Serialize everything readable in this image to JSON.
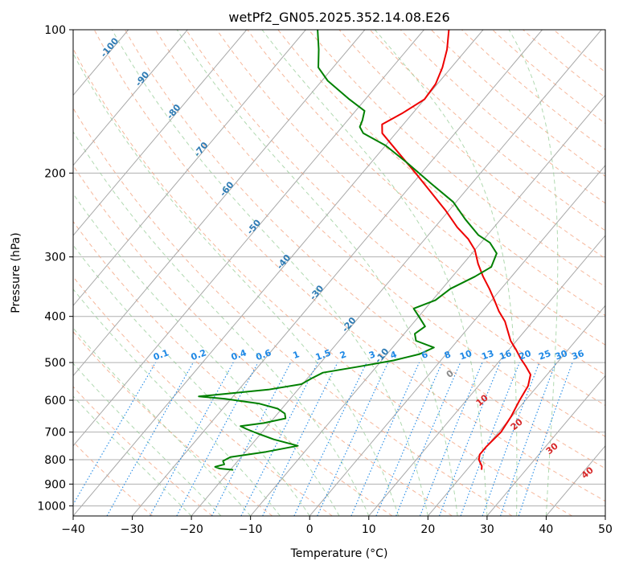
{
  "chart_data": {
    "type": "line",
    "subtype": "skew-t log-p diagram",
    "title": "wetPf2_GN05.2025.352.14.08.E26",
    "xlabel": "Temperature (°C)",
    "ylabel": "Pressure (hPa)",
    "xlim": [
      -40,
      50
    ],
    "ylim": [
      1050,
      100
    ],
    "y_scale": "log",
    "grid": true,
    "x_ticks": [
      -40,
      -30,
      -20,
      -10,
      0,
      10,
      20,
      30,
      40,
      50
    ],
    "x_tick_labels": [
      "−40",
      "−30",
      "−20",
      "−10",
      "0",
      "10",
      "20",
      "30",
      "40",
      "50"
    ],
    "y_ticks": [
      100,
      200,
      300,
      400,
      500,
      600,
      700,
      800,
      900,
      1000
    ],
    "y_tick_labels": [
      "100",
      "200",
      "300",
      "400",
      "500",
      "600",
      "700",
      "800",
      "900",
      "1000"
    ],
    "isotherm_labels": [
      {
        "value": -100,
        "text": "-100"
      },
      {
        "value": -90,
        "text": "-90"
      },
      {
        "value": -80,
        "text": "-80"
      },
      {
        "value": -70,
        "text": "-70"
      },
      {
        "value": -60,
        "text": "-60"
      },
      {
        "value": -50,
        "text": "-50"
      },
      {
        "value": -40,
        "text": "-40"
      },
      {
        "value": -30,
        "text": "-30"
      },
      {
        "value": -20,
        "text": "-20"
      },
      {
        "value": -10,
        "text": "-10"
      }
    ],
    "isotherm_label_color": "#2e7bb4",
    "dry_adiabat_labels": [
      {
        "value": 0,
        "text": "0",
        "color": "#888888"
      },
      {
        "value": 10,
        "text": "10",
        "color": "#d62728"
      },
      {
        "value": 20,
        "text": "20",
        "color": "#d62728"
      },
      {
        "value": 30,
        "text": "30",
        "color": "#d62728"
      },
      {
        "value": 40,
        "text": "40",
        "color": "#d62728"
      }
    ],
    "mixing_ratio_labels": [
      "0.1",
      "0.2",
      "0.4",
      "0.6",
      "1",
      "1.5",
      "2",
      "3",
      "4",
      "6",
      "8",
      "10",
      "13",
      "16",
      "20",
      "25",
      "30",
      "36"
    ],
    "mixing_ratio_values": [
      0.1,
      0.2,
      0.4,
      0.6,
      1,
      1.5,
      2,
      3,
      4,
      6,
      8,
      10,
      13,
      16,
      20,
      25,
      30,
      36
    ],
    "mixing_ratio_color": "#1e88e5",
    "series": [
      {
        "role": "temperature",
        "color": "#ee0000",
        "points": [
          {
            "p": 840,
            "t": 22.5
          },
          {
            "p": 825,
            "t": 22.0
          },
          {
            "p": 800,
            "t": 20.6
          },
          {
            "p": 780,
            "t": 20.0
          },
          {
            "p": 750,
            "t": 20.0
          },
          {
            "p": 700,
            "t": 20.4
          },
          {
            "p": 650,
            "t": 19.9
          },
          {
            "p": 600,
            "t": 19.0
          },
          {
            "p": 560,
            "t": 18.4
          },
          {
            "p": 530,
            "t": 17.2
          },
          {
            "p": 510,
            "t": 15.3
          },
          {
            "p": 490,
            "t": 13.2
          },
          {
            "p": 470,
            "t": 11.2
          },
          {
            "p": 450,
            "t": 9.0
          },
          {
            "p": 430,
            "t": 7.2
          },
          {
            "p": 410,
            "t": 5.3
          },
          {
            "p": 390,
            "t": 2.8
          },
          {
            "p": 370,
            "t": 0.5
          },
          {
            "p": 350,
            "t": -2.0
          },
          {
            "p": 330,
            "t": -4.8
          },
          {
            "p": 310,
            "t": -7.5
          },
          {
            "p": 290,
            "t": -10.0
          },
          {
            "p": 275,
            "t": -12.7
          },
          {
            "p": 260,
            "t": -16.2
          },
          {
            "p": 240,
            "t": -20.5
          },
          {
            "p": 220,
            "t": -25.5
          },
          {
            "p": 200,
            "t": -31.0
          },
          {
            "p": 180,
            "t": -37.2
          },
          {
            "p": 165,
            "t": -42.3
          },
          {
            "p": 158,
            "t": -43.6
          },
          {
            "p": 150,
            "t": -41.8
          },
          {
            "p": 140,
            "t": -40.0
          },
          {
            "p": 130,
            "t": -40.3
          },
          {
            "p": 120,
            "t": -41.5
          },
          {
            "p": 110,
            "t": -43.3
          },
          {
            "p": 100,
            "t": -45.8
          }
        ]
      },
      {
        "role": "dewpoint",
        "color": "#008000",
        "points": [
          {
            "p": 840,
            "t": -19.5
          },
          {
            "p": 835,
            "t": -22.0
          },
          {
            "p": 828,
            "t": -23.0
          },
          {
            "p": 818,
            "t": -21.8
          },
          {
            "p": 805,
            "t": -22.5
          },
          {
            "p": 790,
            "t": -21.8
          },
          {
            "p": 770,
            "t": -16.5
          },
          {
            "p": 748,
            "t": -12.0
          },
          {
            "p": 725,
            "t": -17.0
          },
          {
            "p": 705,
            "t": -20.5
          },
          {
            "p": 690,
            "t": -23.0
          },
          {
            "p": 680,
            "t": -24.5
          },
          {
            "p": 670,
            "t": -21.0
          },
          {
            "p": 655,
            "t": -18.0
          },
          {
            "p": 640,
            "t": -18.8
          },
          {
            "p": 625,
            "t": -20.7
          },
          {
            "p": 610,
            "t": -24.5
          },
          {
            "p": 596,
            "t": -31.0
          },
          {
            "p": 589,
            "t": -35.8
          },
          {
            "p": 584,
            "t": -33.0
          },
          {
            "p": 570,
            "t": -25.0
          },
          {
            "p": 555,
            "t": -20.2
          },
          {
            "p": 540,
            "t": -19.3
          },
          {
            "p": 525,
            "t": -18.2
          },
          {
            "p": 510,
            "t": -13.0
          },
          {
            "p": 495,
            "t": -8.0
          },
          {
            "p": 480,
            "t": -4.5
          },
          {
            "p": 465,
            "t": -3.0
          },
          {
            "p": 450,
            "t": -7.0
          },
          {
            "p": 435,
            "t": -8.2
          },
          {
            "p": 420,
            "t": -7.5
          },
          {
            "p": 400,
            "t": -10.0
          },
          {
            "p": 385,
            "t": -12.0
          },
          {
            "p": 370,
            "t": -9.5
          },
          {
            "p": 350,
            "t": -8.6
          },
          {
            "p": 330,
            "t": -6.2
          },
          {
            "p": 315,
            "t": -4.8
          },
          {
            "p": 295,
            "t": -5.8
          },
          {
            "p": 280,
            "t": -8.5
          },
          {
            "p": 270,
            "t": -11.5
          },
          {
            "p": 250,
            "t": -16.0
          },
          {
            "p": 230,
            "t": -20.5
          },
          {
            "p": 210,
            "t": -27.0
          },
          {
            "p": 190,
            "t": -34.0
          },
          {
            "p": 175,
            "t": -40.0
          },
          {
            "p": 165,
            "t": -45.5
          },
          {
            "p": 160,
            "t": -47.0
          },
          {
            "p": 155,
            "t": -47.5
          },
          {
            "p": 148,
            "t": -48.5
          },
          {
            "p": 140,
            "t": -52.7
          },
          {
            "p": 128,
            "t": -59.0
          },
          {
            "p": 120,
            "t": -62.5
          },
          {
            "p": 110,
            "t": -65.0
          },
          {
            "p": 100,
            "t": -68.0
          }
        ]
      }
    ]
  }
}
